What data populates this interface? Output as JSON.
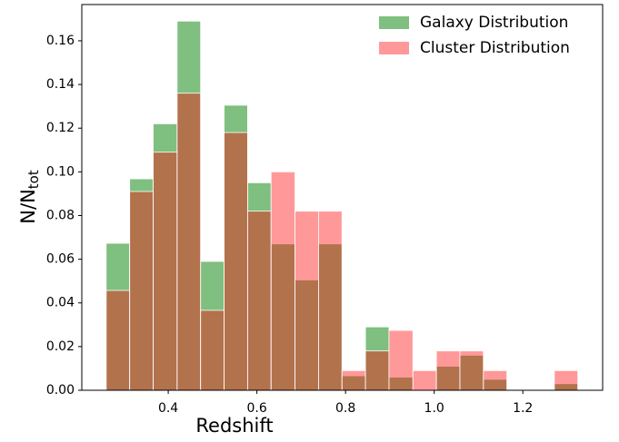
{
  "chart_data": {
    "type": "histogram",
    "xlabel": "Redshift",
    "ylabel": "N/N",
    "ylabel_sub": "tot",
    "bins": [
      0.26,
      0.313,
      0.366,
      0.42,
      0.473,
      0.526,
      0.579,
      0.632,
      0.686,
      0.739,
      0.792,
      0.845,
      0.898,
      0.952,
      1.005,
      1.058,
      1.111,
      1.164,
      1.218,
      1.271,
      1.324
    ],
    "series": [
      {
        "name": "Galaxy Distribution",
        "color": "#008000",
        "values": [
          0.0673,
          0.0968,
          0.122,
          0.169,
          0.059,
          0.1305,
          0.095,
          0.067,
          0.0505,
          0.067,
          0.0066,
          0.029,
          0.006,
          0,
          0.011,
          0.016,
          0.005,
          0,
          0,
          0.003
        ]
      },
      {
        "name": "Cluster Distribution",
        "color": "#ff0000",
        "values": [
          0.0457,
          0.091,
          0.109,
          0.136,
          0.0366,
          0.118,
          0.082,
          0.1,
          0.082,
          0.082,
          0.009,
          0.018,
          0.0274,
          0.009,
          0.018,
          0.018,
          0.009,
          0,
          0,
          0.009
        ]
      }
    ],
    "xlim": [
      0.205,
      1.38
    ],
    "ylim": [
      0,
      0.1766
    ],
    "xticks": [
      0.4,
      0.6,
      0.8,
      {
        "value": 1.0,
        "label": "1.0"
      },
      1.2
    ],
    "yticks": [
      {
        "value": 0,
        "label": "0.00"
      },
      {
        "value": 0.02,
        "label": "0.02"
      },
      {
        "value": 0.04,
        "label": "0.04"
      },
      {
        "value": 0.06,
        "label": "0.06"
      },
      {
        "value": 0.08,
        "label": "0.08"
      },
      {
        "value": 0.1,
        "label": "0.10"
      },
      {
        "value": 0.12,
        "label": "0.12"
      },
      {
        "value": 0.14,
        "label": "0.14"
      },
      {
        "value": 0.16,
        "label": "0.16"
      }
    ],
    "legend": "upper right"
  }
}
